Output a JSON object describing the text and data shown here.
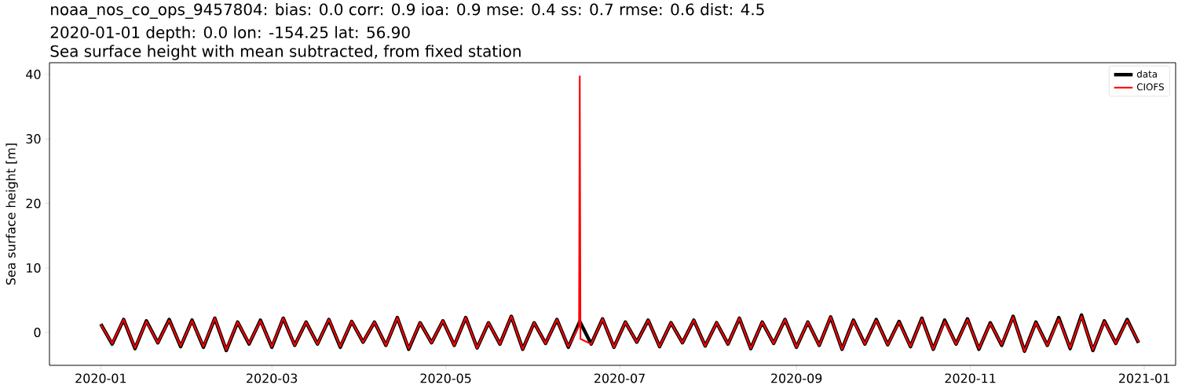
{
  "chart_data": {
    "type": "line",
    "title": "noaa_nos_co_ops_9457804: bias: 0.0  corr: 0.9  ioa: 0.9  mse: 0.4  ss: 0.7  rmse: 0.6  dist: 4.5",
    "subtitle": "2020-01-01 depth: 0.0 lon: -154.25 lat: 56.90",
    "annotations": [
      "Sea surface height with mean subtracted, from fixed station"
    ],
    "ylabel": "Sea surface height [m]",
    "x": [
      "2020-01-01",
      "2020-01-05",
      "2020-01-09",
      "2020-01-13",
      "2020-01-17",
      "2020-01-21",
      "2020-01-25",
      "2020-01-29",
      "2020-02-02",
      "2020-02-06",
      "2020-02-10",
      "2020-02-14",
      "2020-02-18",
      "2020-02-22",
      "2020-02-26",
      "2020-03-01",
      "2020-03-05",
      "2020-03-09",
      "2020-03-13",
      "2020-03-17",
      "2020-03-21",
      "2020-03-25",
      "2020-03-29",
      "2020-04-02",
      "2020-04-06",
      "2020-04-10",
      "2020-04-14",
      "2020-04-18",
      "2020-04-22",
      "2020-04-26",
      "2020-04-30",
      "2020-05-04",
      "2020-05-08",
      "2020-05-12",
      "2020-05-16",
      "2020-05-20",
      "2020-05-24",
      "2020-05-28",
      "2020-06-01",
      "2020-06-05",
      "2020-06-09",
      "2020-06-13",
      "2020-06-17",
      "2020-06-21",
      "2020-06-25",
      "2020-06-29",
      "2020-07-03",
      "2020-07-07",
      "2020-07-11",
      "2020-07-15",
      "2020-07-19",
      "2020-07-23",
      "2020-07-27",
      "2020-07-31",
      "2020-08-04",
      "2020-08-08",
      "2020-08-12",
      "2020-08-16",
      "2020-08-20",
      "2020-08-24",
      "2020-08-28",
      "2020-09-01",
      "2020-09-05",
      "2020-09-09",
      "2020-09-13",
      "2020-09-17",
      "2020-09-21",
      "2020-09-25",
      "2020-09-29",
      "2020-10-03",
      "2020-10-07",
      "2020-10-11",
      "2020-10-15",
      "2020-10-19",
      "2020-10-23",
      "2020-10-27",
      "2020-10-31",
      "2020-11-04",
      "2020-11-08",
      "2020-11-12",
      "2020-11-16",
      "2020-11-20",
      "2020-11-24",
      "2020-11-28",
      "2020-12-02",
      "2020-12-06",
      "2020-12-10",
      "2020-12-14",
      "2020-12-18",
      "2020-12-22",
      "2020-12-26",
      "2020-12-30"
    ],
    "series": [
      {
        "name": "data",
        "color": "#000000",
        "values": [
          1.3,
          -1.8,
          2.0,
          -2.5,
          1.8,
          -1.6,
          2.0,
          -2.2,
          1.9,
          -2.3,
          2.2,
          -2.8,
          1.6,
          -1.8,
          1.9,
          -2.3,
          2.2,
          -2.0,
          1.6,
          -1.8,
          2.0,
          -2.3,
          1.7,
          -1.5,
          1.6,
          -2.0,
          2.3,
          -2.6,
          1.5,
          -1.6,
          1.8,
          -2.0,
          2.3,
          -2.4,
          1.5,
          -1.8,
          2.5,
          -2.6,
          1.5,
          -1.7,
          2.0,
          -2.3,
          1.7,
          -1.8,
          2.1,
          -2.3,
          1.6,
          -1.5,
          1.9,
          -2.2,
          1.5,
          -1.6,
          1.9,
          -2.1,
          1.5,
          -1.8,
          2.2,
          -2.5,
          1.6,
          -1.7,
          2.0,
          -2.3,
          1.6,
          -2.0,
          2.4,
          -2.6,
          1.9,
          -1.8,
          2.0,
          -1.9,
          1.7,
          -2.2,
          2.2,
          -2.6,
          1.9,
          -1.8,
          2.1,
          -2.6,
          1.5,
          -2.0,
          2.5,
          -2.9,
          1.6,
          -2.0,
          2.3,
          -2.5,
          2.7,
          -2.8,
          1.8,
          -1.7,
          2.0,
          -1.6
        ]
      },
      {
        "name": "CIOFS",
        "color": "#ff0000",
        "x": [
          "2020-01-01",
          "2020-01-05",
          "2020-01-09",
          "2020-01-13",
          "2020-01-17",
          "2020-01-21",
          "2020-01-25",
          "2020-01-29",
          "2020-02-02",
          "2020-02-06",
          "2020-02-10",
          "2020-02-14",
          "2020-02-18",
          "2020-02-22",
          "2020-02-26",
          "2020-03-01",
          "2020-03-05",
          "2020-03-09",
          "2020-03-13",
          "2020-03-17",
          "2020-03-21",
          "2020-03-25",
          "2020-03-29",
          "2020-04-02",
          "2020-04-06",
          "2020-04-10",
          "2020-04-14",
          "2020-04-18",
          "2020-04-22",
          "2020-04-26",
          "2020-04-30",
          "2020-05-04",
          "2020-05-08",
          "2020-05-12",
          "2020-05-16",
          "2020-05-20",
          "2020-05-24",
          "2020-05-28",
          "2020-06-01",
          "2020-06-05",
          "2020-06-09",
          "2020-06-13",
          "2020-06-16T18:00",
          "2020-06-17T00:00",
          "2020-06-17T06:00",
          "2020-06-21",
          "2020-06-25",
          "2020-06-29",
          "2020-07-03",
          "2020-07-07",
          "2020-07-11",
          "2020-07-15",
          "2020-07-19",
          "2020-07-23",
          "2020-07-27",
          "2020-07-31",
          "2020-08-04",
          "2020-08-08",
          "2020-08-12",
          "2020-08-16",
          "2020-08-20",
          "2020-08-24",
          "2020-08-28",
          "2020-09-01",
          "2020-09-05",
          "2020-09-09",
          "2020-09-13",
          "2020-09-17",
          "2020-09-21",
          "2020-09-25",
          "2020-09-29",
          "2020-10-03",
          "2020-10-07",
          "2020-10-11",
          "2020-10-15",
          "2020-10-19",
          "2020-10-23",
          "2020-10-27",
          "2020-10-31",
          "2020-11-04",
          "2020-11-08",
          "2020-11-12",
          "2020-11-16",
          "2020-11-20",
          "2020-11-24",
          "2020-11-28",
          "2020-12-02",
          "2020-12-06",
          "2020-12-10",
          "2020-12-14",
          "2020-12-18",
          "2020-12-22",
          "2020-12-26",
          "2020-12-30"
        ],
        "values": [
          1.2,
          -1.7,
          2.0,
          -2.4,
          1.7,
          -1.6,
          1.9,
          -2.1,
          1.8,
          -2.2,
          2.2,
          -2.7,
          1.6,
          -1.7,
          1.8,
          -2.2,
          2.2,
          -2.0,
          1.6,
          -1.8,
          2.0,
          -2.2,
          1.7,
          -1.5,
          1.6,
          -2.0,
          2.3,
          -2.5,
          1.5,
          -1.6,
          1.8,
          -2.0,
          2.3,
          -2.4,
          1.5,
          -1.8,
          2.5,
          -2.6,
          1.5,
          -1.7,
          2.0,
          -2.2,
          1.0,
          39.7,
          -1.0,
          -1.8,
          2.1,
          -2.3,
          1.6,
          -1.5,
          1.9,
          -2.2,
          1.5,
          -1.6,
          1.9,
          -2.1,
          1.5,
          -1.8,
          2.2,
          -2.5,
          1.6,
          -1.7,
          2.0,
          -2.3,
          1.6,
          -2.0,
          2.4,
          -2.6,
          1.8,
          -1.8,
          1.9,
          -1.9,
          1.6,
          -2.2,
          2.1,
          -2.6,
          1.7,
          -1.8,
          2.0,
          -2.5,
          1.4,
          -1.9,
          2.4,
          -2.9,
          1.5,
          -2.0,
          2.1,
          -2.4,
          2.5,
          -2.7,
          1.7,
          -1.7,
          1.9,
          -1.5
        ]
      }
    ],
    "xlim": [
      "2019-12-14",
      "2021-01-12"
    ],
    "xticks": [
      "2020-01",
      "2020-03",
      "2020-05",
      "2020-07",
      "2020-09",
      "2020-11",
      "2021-01"
    ],
    "ylim": [
      -5.1,
      41.8
    ],
    "yticks": [
      0,
      10,
      20,
      30,
      40
    ],
    "legend": "top right",
    "marker": "none",
    "line_style": "solid",
    "grid": false
  }
}
